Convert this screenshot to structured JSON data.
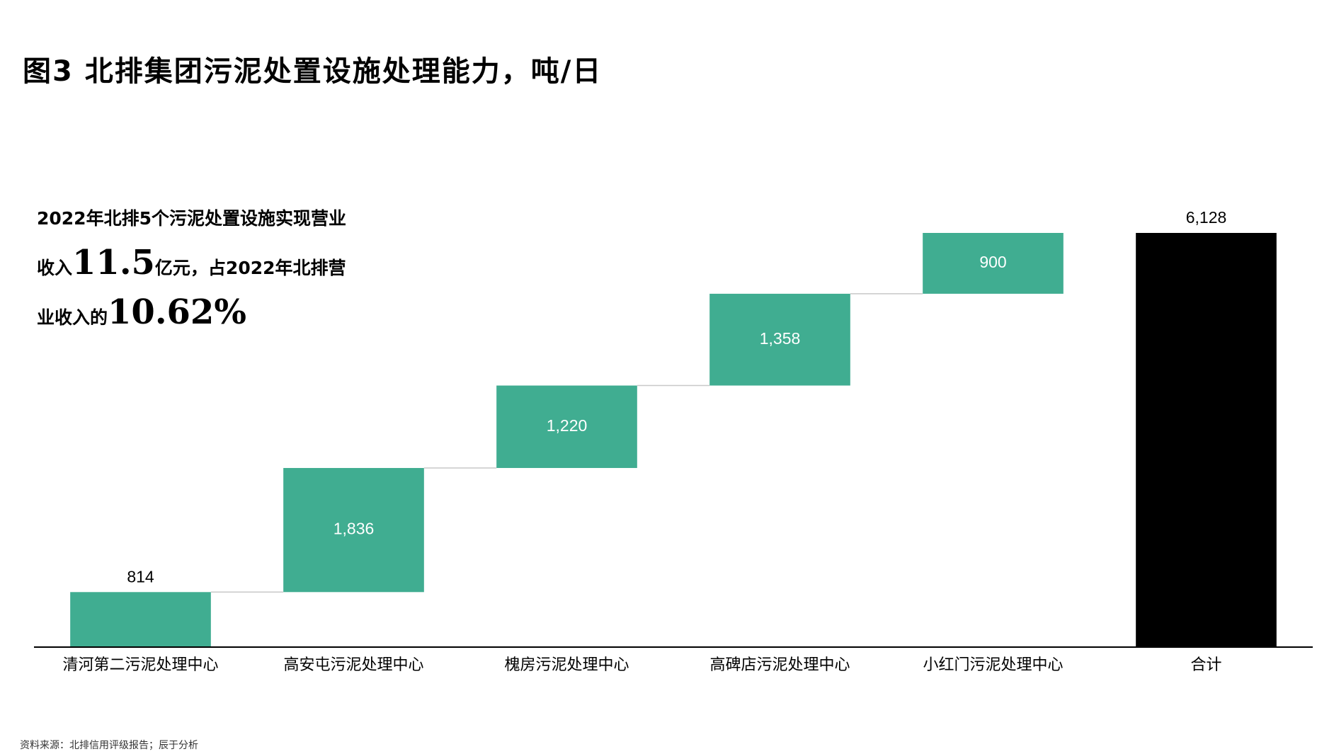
{
  "chart_data": {
    "type": "waterfall",
    "title": "图3 北排集团污泥处置设施处理能力，吨/日",
    "categories": [
      "清河第二污泥处理中心",
      "高安屯污泥处理中心",
      "槐房污泥处理中心",
      "高碑店污泥处理中心",
      "小红门污泥处理中心",
      "合计"
    ],
    "values": [
      814,
      1836,
      1220,
      1358,
      900,
      6128
    ],
    "value_labels": [
      "814",
      "1,836",
      "1,220",
      "1,358",
      "900",
      "6,128"
    ],
    "color": "#40ad91",
    "total_color": "#000000",
    "annotation": {
      "line1": "2022年北排5个污泥处置设施实现营业",
      "line2a": "收入",
      "line2b": "11.5",
      "line2c": "亿元，占2022年北排营",
      "line3a": "业收入的",
      "line3b": "10.62%"
    },
    "source": "资料来源：北排信用评级报告；辰于分析"
  }
}
